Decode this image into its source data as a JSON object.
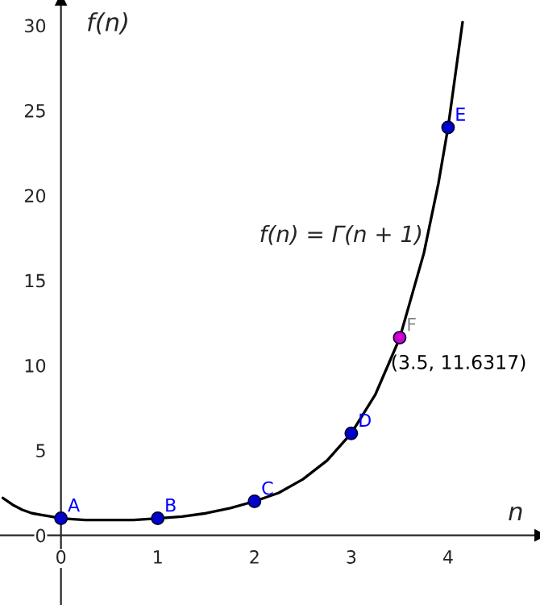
{
  "chart_data": {
    "type": "line",
    "xlabel": "n",
    "ylabel": "f(n)",
    "xlim": [
      -0.63,
      4.95
    ],
    "ylim": [
      -4.1,
      31.5
    ],
    "xticks": [
      0,
      1,
      2,
      3,
      4
    ],
    "yticks": [
      0,
      5,
      10,
      15,
      20,
      25,
      30
    ],
    "grid": false,
    "legend": false,
    "series": [
      {
        "type": "line",
        "color": "#000000",
        "x": [
          -0.6,
          -0.5,
          -0.4,
          -0.3,
          -0.2,
          -0.1,
          0,
          0.25,
          0.5,
          0.75,
          1,
          1.25,
          1.5,
          1.75,
          2,
          2.25,
          2.5,
          2.75,
          3,
          3.25,
          3.5,
          3.75,
          3.9,
          4,
          4.15
        ],
        "values": [
          2.2,
          1.8,
          1.5,
          1.3,
          1.2,
          1.1,
          1,
          0.9,
          0.9,
          0.9,
          1,
          1.1,
          1.3,
          1.6,
          2,
          2.5,
          3.3,
          4.4,
          6,
          8.3,
          11.6,
          16.6,
          20.7,
          24,
          30.2
        ]
      },
      {
        "type": "scatter",
        "color": "#0000cc",
        "x": [
          0,
          1,
          2,
          3,
          4
        ],
        "values": [
          1,
          1,
          2,
          6,
          24
        ]
      },
      {
        "type": "scatter",
        "color": "#cc00cc",
        "x": [
          3.5
        ],
        "values": [
          11.6317
        ]
      }
    ],
    "annotations": [
      {
        "text": "A",
        "x": 0,
        "y": 1
      },
      {
        "text": "B",
        "x": 1,
        "y": 1
      },
      {
        "text": "C",
        "x": 2,
        "y": 2
      },
      {
        "text": "D",
        "x": 3,
        "y": 6
      },
      {
        "text": "E",
        "x": 4,
        "y": 24
      },
      {
        "text": "F",
        "x": 3.5,
        "y": 11.6317
      },
      {
        "text": "(3.5, 11.6317)",
        "x": 3.5,
        "y": 11.6317
      },
      "f(n) = Γ(n + 1)"
    ]
  }
}
